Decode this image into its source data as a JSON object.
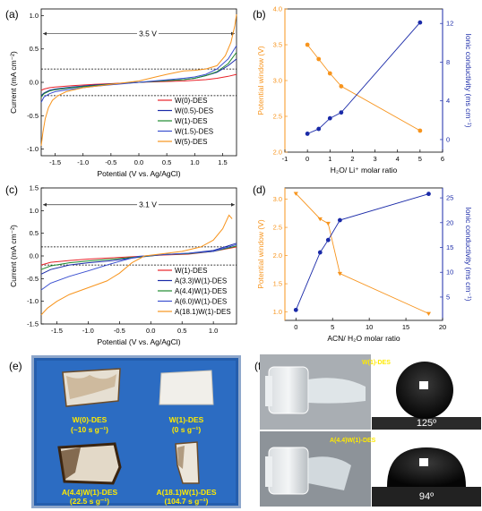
{
  "chart_data": [
    {
      "panel": "(a)",
      "type": "line",
      "xlabel": "Potential (V vs. Ag/AgCl)",
      "ylabel": "Current (mA cm⁻²)",
      "xlim": [
        -1.75,
        1.75
      ],
      "ylim": [
        -1.1,
        1.1
      ],
      "xticks": [
        "-1.5",
        "-1.0",
        "-0.5",
        "0.0",
        "0.5",
        "1.0",
        "1.5"
      ],
      "yticks": [
        "-1.0",
        "-0.5",
        "0.0",
        "0.5",
        "1.0"
      ],
      "annotation": "3.5 V",
      "dashed_lines_y": [
        0.2,
        -0.2
      ],
      "window_arrow": {
        "x": [
          -1.75,
          1.75
        ],
        "y": 0.73
      },
      "legend_position": "bottom-right",
      "series": [
        {
          "name": "W(0)-DES",
          "color": "#e8232a",
          "x": [
            -1.75,
            -1.7,
            -1.6,
            -1.5,
            -1.2,
            -0.8,
            -0.4,
            0,
            0.4,
            0.8,
            1.0,
            1.2,
            1.4,
            1.6,
            1.75
          ],
          "y": [
            -0.12,
            -0.1,
            -0.08,
            -0.07,
            -0.05,
            -0.03,
            -0.015,
            0,
            0.01,
            0.02,
            0.03,
            0.04,
            0.06,
            0.09,
            0.12
          ]
        },
        {
          "name": "W(0.5)-DES",
          "color": "#1a2aa8",
          "x": [
            -1.75,
            -1.7,
            -1.6,
            -1.5,
            -1.2,
            -0.8,
            -0.4,
            0,
            0.4,
            0.8,
            1.0,
            1.2,
            1.4,
            1.6,
            1.75
          ],
          "y": [
            -0.2,
            -0.16,
            -0.12,
            -0.1,
            -0.07,
            -0.04,
            -0.02,
            0,
            0.02,
            0.04,
            0.06,
            0.1,
            0.15,
            0.25,
            0.35
          ]
        },
        {
          "name": "W(1)-DES",
          "color": "#1f8a2e",
          "x": [
            -1.75,
            -1.7,
            -1.6,
            -1.5,
            -1.2,
            -0.8,
            -0.4,
            0,
            0.4,
            0.8,
            1.0,
            1.2,
            1.4,
            1.6,
            1.75
          ],
          "y": [
            -0.22,
            -0.17,
            -0.13,
            -0.11,
            -0.08,
            -0.05,
            -0.02,
            0,
            0.02,
            0.04,
            0.06,
            0.1,
            0.16,
            0.28,
            0.45
          ]
        },
        {
          "name": "W(1.5)-DES",
          "color": "#3a4fd0",
          "x": [
            -1.75,
            -1.7,
            -1.6,
            -1.5,
            -1.2,
            -0.8,
            -0.4,
            0,
            0.4,
            0.8,
            1.0,
            1.2,
            1.4,
            1.6,
            1.75
          ],
          "y": [
            -0.3,
            -0.22,
            -0.17,
            -0.14,
            -0.1,
            -0.06,
            -0.03,
            0,
            0.03,
            0.06,
            0.08,
            0.12,
            0.2,
            0.35,
            0.55
          ]
        },
        {
          "name": "W(5)-DES",
          "color": "#f7941d",
          "x": [
            -1.75,
            -1.72,
            -1.68,
            -1.62,
            -1.55,
            -1.45,
            -1.3,
            -1.0,
            -0.6,
            -0.3,
            0,
            0.3,
            0.5,
            0.8,
            1.0,
            1.2,
            1.4,
            1.55,
            1.65,
            1.72,
            1.75
          ],
          "y": [
            -0.95,
            -0.75,
            -0.55,
            -0.38,
            -0.27,
            -0.2,
            -0.14,
            -0.08,
            -0.04,
            -0.01,
            0.02,
            0.08,
            0.12,
            0.17,
            0.18,
            0.2,
            0.25,
            0.4,
            0.6,
            0.85,
            1.02
          ]
        }
      ]
    },
    {
      "panel": "(b)",
      "type": "line",
      "xlabel": "H₂O/ Li⁺ molar ratio",
      "ylabel_left": "Potential window (V)",
      "ylabel_right": "Ionic conductivity (ms cm⁻¹)",
      "xlim": [
        -1,
        6
      ],
      "ylim_left": [
        2.0,
        4.0
      ],
      "ylim_right": [
        -1.3,
        13.5
      ],
      "xticks": [
        "-1",
        "0",
        "1",
        "2",
        "3",
        "4",
        "5",
        "6"
      ],
      "yticks_left": [
        "2.0",
        "2.5",
        "3.0",
        "3.5",
        "4.0"
      ],
      "yticks_right": [
        "0",
        "4",
        "8",
        "12"
      ],
      "series": [
        {
          "name": "Potential window",
          "axis": "left",
          "color": "#f7941d",
          "x": [
            0,
            0.5,
            1,
            1.5,
            5
          ],
          "y": [
            3.5,
            3.3,
            3.1,
            2.92,
            2.3
          ]
        },
        {
          "name": "Ionic conductivity",
          "axis": "right",
          "color": "#1a2aa8",
          "x": [
            0,
            0.5,
            1,
            1.5,
            5
          ],
          "y": [
            0.6,
            1.1,
            2.2,
            2.8,
            12.1
          ]
        }
      ]
    },
    {
      "panel": "(c)",
      "type": "line",
      "xlabel": "Potential (V vs. Ag/AgCl)",
      "ylabel": "Current (mA cm⁻²)",
      "xlim": [
        -1.75,
        1.37
      ],
      "ylim": [
        -1.5,
        1.5
      ],
      "xticks": [
        "-1.5",
        "-1.0",
        "-0.5",
        "0.0",
        "0.5",
        "1.0"
      ],
      "yticks": [
        "-1.5",
        "-1.0",
        "-0.5",
        "0.0",
        "0.5",
        "1.0",
        "1.5"
      ],
      "annotation": "3.1 V",
      "dashed_lines_y": [
        0.2,
        -0.2
      ],
      "window_arrow": {
        "x": [
          -1.75,
          1.37
        ],
        "y": 1.13
      },
      "legend_position": "bottom-right",
      "series": [
        {
          "name": "W(1)-DES",
          "color": "#e8232a",
          "x": [
            -1.75,
            -1.6,
            -1.3,
            -1.0,
            -0.6,
            -0.2,
            0.2,
            0.6,
            1.0,
            1.37
          ],
          "y": [
            -0.2,
            -0.14,
            -0.1,
            -0.07,
            -0.04,
            -0.01,
            0.02,
            0.04,
            0.1,
            0.2
          ]
        },
        {
          "name": "A(3.3)W(1)-DES",
          "color": "#1a2aa8",
          "x": [
            -1.75,
            -1.6,
            -1.3,
            -1.0,
            -0.6,
            -0.2,
            0.2,
            0.6,
            1.0,
            1.37
          ],
          "y": [
            -0.4,
            -0.3,
            -0.2,
            -0.15,
            -0.1,
            -0.03,
            0.03,
            0.06,
            0.12,
            0.28
          ]
        },
        {
          "name": "A(4.4)W(1)-DES",
          "color": "#1f8a2e",
          "x": [
            -1.75,
            -1.6,
            -1.3,
            -1.0,
            -0.6,
            -0.2,
            0.2,
            0.6,
            1.0,
            1.37
          ],
          "y": [
            -0.3,
            -0.22,
            -0.15,
            -0.11,
            -0.07,
            -0.02,
            0.03,
            0.05,
            0.1,
            0.22
          ]
        },
        {
          "name": "A(6.0)W(1)-DES",
          "color": "#3a4fd0",
          "x": [
            -1.75,
            -1.6,
            -1.3,
            -1.0,
            -0.7,
            -0.45,
            -0.2,
            0.2,
            0.6,
            1.0,
            1.37
          ],
          "y": [
            -0.75,
            -0.6,
            -0.45,
            -0.33,
            -0.2,
            -0.1,
            -0.01,
            0.03,
            0.06,
            0.1,
            0.25
          ]
        },
        {
          "name": "A(18.1)W(1)-DES",
          "color": "#f7941d",
          "x": [
            -1.75,
            -1.65,
            -1.5,
            -1.3,
            -1.0,
            -0.7,
            -0.5,
            -0.3,
            -0.1,
            0.2,
            0.5,
            0.8,
            1.0,
            1.15,
            1.25,
            1.3
          ],
          "y": [
            -1.3,
            -1.15,
            -1.0,
            -0.85,
            -0.7,
            -0.55,
            -0.38,
            -0.15,
            0.0,
            0.05,
            0.1,
            0.2,
            0.35,
            0.6,
            0.9,
            0.82
          ]
        }
      ]
    },
    {
      "panel": "(d)",
      "type": "line",
      "xlabel": "ACN/ H₂O molar ratio",
      "ylabel_left": "Potential window (V)",
      "ylabel_right": "Ionic conductivity (ms cm⁻¹)",
      "xlim": [
        -1.5,
        20
      ],
      "ylim_left": [
        0.85,
        3.2
      ],
      "ylim_right": [
        0.3,
        27
      ],
      "xticks": [
        "0",
        "5",
        "10",
        "15",
        "20"
      ],
      "yticks_left": [
        "1.0",
        "1.5",
        "2.0",
        "2.5",
        "3.0"
      ],
      "yticks_right": [
        "5",
        "10",
        "15",
        "20",
        "25"
      ],
      "series": [
        {
          "name": "Potential window",
          "axis": "left",
          "color": "#f7941d",
          "x": [
            0,
            3.3,
            4.4,
            6.0,
            18.1
          ],
          "y": [
            3.1,
            2.65,
            2.57,
            1.68,
            0.97
          ]
        },
        {
          "name": "Ionic conductivity",
          "axis": "right",
          "color": "#1a2aa8",
          "x": [
            0,
            3.3,
            4.4,
            6.0,
            18.1
          ],
          "y": [
            2.4,
            14.0,
            16.5,
            20.5,
            25.8
          ]
        }
      ]
    }
  ],
  "panel_labels": {
    "a": "(a)",
    "b": "(b)",
    "c": "(c)",
    "d": "(d)",
    "e": "(e)",
    "f": "(f)"
  },
  "photo_e": {
    "background": "#2d6fc4",
    "samples": [
      {
        "label1": "W(0)-DES",
        "label2": "(~10 s g⁻¹)"
      },
      {
        "label1": "W(1)-DES",
        "label2": "(0 s g⁻¹)"
      },
      {
        "label1": "A(4.4)W(1)-DES",
        "label2": "(22.5 s g⁻¹)"
      },
      {
        "label1": "A(18.1)W(1)-DES",
        "label2": "(104.7 s g⁻¹)"
      }
    ],
    "label_color": "#ffea00"
  },
  "photo_f": {
    "labels": [
      "W(1)-DES",
      "A(4.4)W(1)-DES"
    ],
    "angles": [
      "125º",
      "94º"
    ],
    "label_color": "#ffea00"
  }
}
